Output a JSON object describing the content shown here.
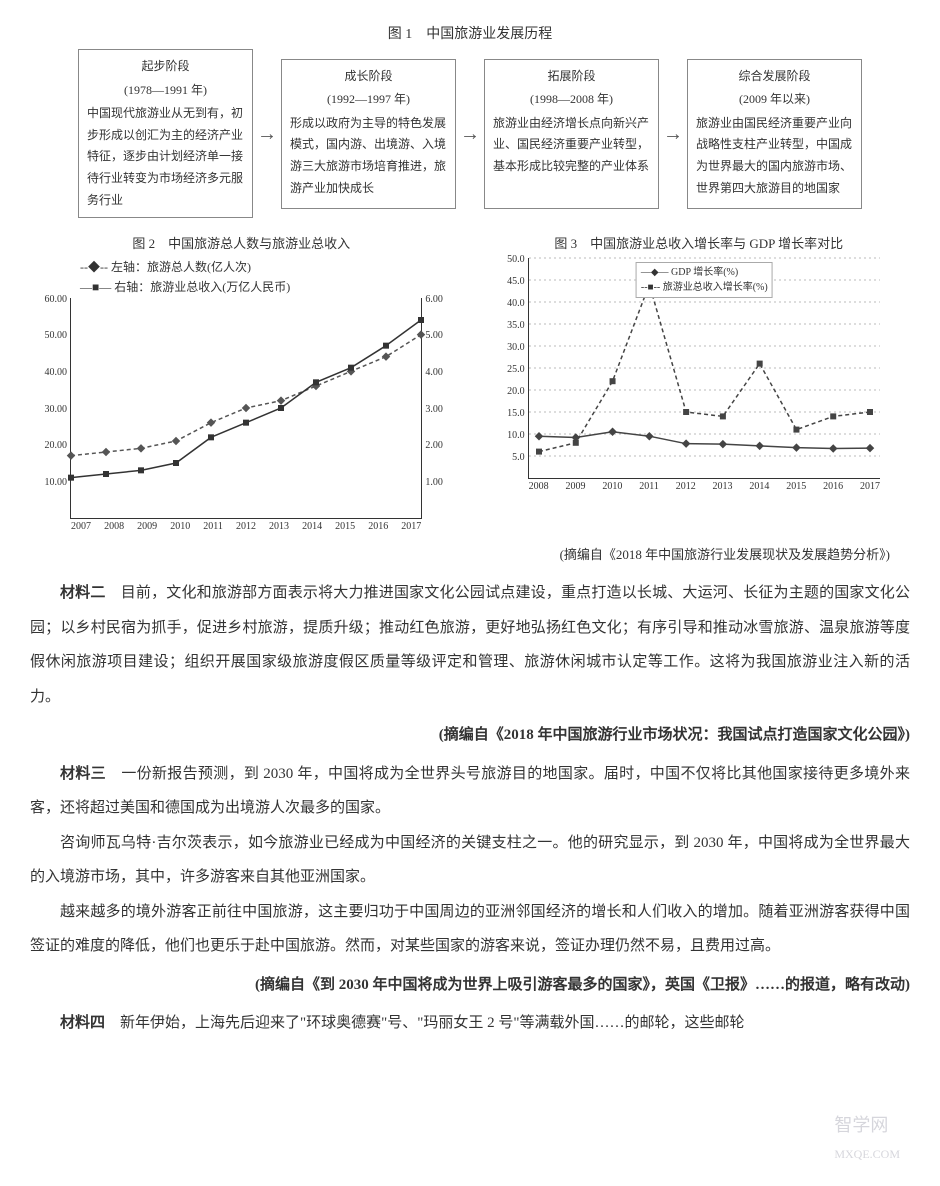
{
  "fig1": {
    "caption": "图 1　中国旅游业发展历程",
    "stages": [
      {
        "title": "起步阶段",
        "period": "(1978—1991 年)",
        "text": "中国现代旅游业从无到有，初步形成以创汇为主的经济产业特征，逐步由计划经济单一接待行业转变为市场经济多元服务行业"
      },
      {
        "title": "成长阶段",
        "period": "(1992—1997 年)",
        "text": "形成以政府为主导的特色发展模式，国内游、出境游、入境游三大旅游市场培育推进，旅游产业加快成长"
      },
      {
        "title": "拓展阶段",
        "period": "(1998—2008 年)",
        "text": "旅游业由经济增长点向新兴产业、国民经济重要产业转型，基本形成比较完整的产业体系"
      },
      {
        "title": "综合发展阶段",
        "period": "(2009 年以来)",
        "text": "旅游业由国民经济重要产业向战略性支柱产业转型，中国成为世界最大的国内旅游市场、世界第四大旅游目的地国家"
      }
    ],
    "arrow": "→"
  },
  "fig2": {
    "caption": "图 2　中国旅游总人数与旅游业总收入",
    "legend_left": "--◆--  左轴：旅游总人数(亿人次)",
    "legend_right": "—■—  右轴：旅游业总收入(万亿人民币)",
    "years": [
      "2007",
      "2008",
      "2009",
      "2010",
      "2011",
      "2012",
      "2013",
      "2014",
      "2015",
      "2016",
      "2017"
    ],
    "people": [
      17,
      18,
      19,
      21,
      26,
      30,
      32,
      36,
      40,
      44,
      50
    ],
    "revenue": [
      1.1,
      1.2,
      1.3,
      1.5,
      2.2,
      2.6,
      3.0,
      3.7,
      4.1,
      4.7,
      5.4
    ],
    "left_ticks": [
      10,
      20,
      30,
      40,
      50,
      60
    ],
    "right_ticks": [
      1,
      2,
      3,
      4,
      5,
      6
    ],
    "left_max": 60,
    "right_max": 6,
    "color_people": "#555555",
    "color_revenue": "#333333"
  },
  "fig3": {
    "caption": "图 3　中国旅游业总收入增长率与 GDP 增长率对比",
    "legend_gdp": "—◆—  GDP 增长率(%)",
    "legend_tour": "--■--  旅游业总收入增长率(%)",
    "years": [
      "2008",
      "2009",
      "2010",
      "2011",
      "2012",
      "2013",
      "2014",
      "2015",
      "2016",
      "2017"
    ],
    "gdp": [
      9.5,
      9.2,
      10.5,
      9.5,
      7.8,
      7.7,
      7.3,
      6.9,
      6.7,
      6.8
    ],
    "tour": [
      6,
      8,
      22,
      44,
      15,
      14,
      26,
      11,
      14,
      15
    ],
    "y_ticks": [
      5,
      10,
      15,
      20,
      25,
      30,
      35,
      40,
      45,
      50
    ],
    "y_max": 50,
    "color_gdp": "#444444",
    "color_tour": "#444444"
  },
  "source": "(摘编自《2018 年中国旅游行业发展现状及发展趋势分析》)",
  "material2": {
    "label": "材料二",
    "p1": "目前，文化和旅游部方面表示将大力推进国家文化公园试点建设，重点打造以长城、大运河、长征为主题的国家文化公园；以乡村民宿为抓手，促进乡村旅游，提质升级；推动红色旅游，更好地弘扬红色文化；有序引导和推动冰雪旅游、温泉旅游等度假休闲旅游项目建设；组织开展国家级旅游度假区质量等级评定和管理、旅游休闲城市认定等工作。这将为我国旅游业注入新的活力。",
    "citation": "(摘编自《2018 年中国旅游行业市场状况：我国试点打造国家文化公园》)"
  },
  "material3": {
    "label": "材料三",
    "p1": "一份新报告预测，到 2030 年，中国将成为全世界头号旅游目的地国家。届时，中国不仅将比其他国家接待更多境外来客，还将超过美国和德国成为出境游人次最多的国家。",
    "p2": "咨询师瓦乌特·吉尔茨表示，如今旅游业已经成为中国经济的关键支柱之一。他的研究显示，到 2030 年，中国将成为全世界最大的入境游市场，其中，许多游客来自其他亚洲国家。",
    "p3": "越来越多的境外游客正前往中国旅游，这主要归功于中国周边的亚洲邻国经济的增长和人们收入的增加。随着亚洲游客获得中国签证的难度的降低，他们也更乐于赴中国旅游。然而，对某些国家的游客来说，签证办理仍然不易，且费用过高。",
    "citation": "(摘编自《到 2030 年中国将成为世界上吸引游客最多的国家》，英国《卫报》……的报道，略有改动)"
  },
  "material4": {
    "label": "材料四",
    "p1": "新年伊始，上海先后迎来了\"环球奥德赛\"号、\"玛丽女王 2 号\"等满载外国……的邮轮，这些邮轮"
  },
  "watermark1": "智学网",
  "watermark2": "MXQE.COM"
}
